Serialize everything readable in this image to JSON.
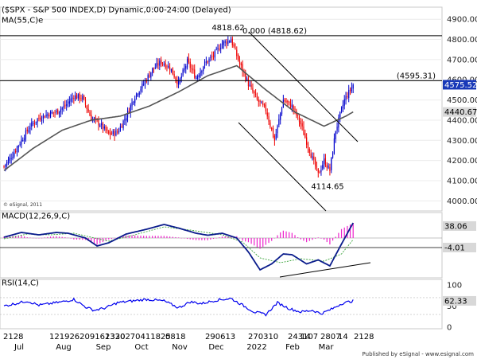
{
  "header": {
    "price_title": "($SPX - S&P 500 INDEX,D) Dynamic,0:00-24:00 (Delayed)",
    "ma_label": "MA(55,C)e",
    "watermark": "© eSignal, 2011",
    "footer": "Published by eSignal - www.esignal.com"
  },
  "colors": {
    "up": "#0000cc",
    "down": "#ee0000",
    "ma": "#555555",
    "macd": "#0a1c8c",
    "signal": "#3aa33a",
    "hist": "#ee22cc",
    "rsi": "#0000ee",
    "level": "#000000",
    "badge_last": "#1838b8",
    "badge_other": "#d8d8d8"
  },
  "chart_data": [
    {
      "type": "candlestick",
      "panel": "price",
      "ylim": [
        3950,
        4960
      ],
      "yticks": [
        4000,
        4100,
        4200,
        4300,
        4400,
        4500,
        4600,
        4700,
        4800,
        4900
      ],
      "ytick_labels": [
        "4000.00",
        "4100.00",
        "4200.00",
        "4300.00",
        "4400.00",
        "4500.00",
        "4600.00",
        "4700.00",
        "4800.00",
        "4900.00"
      ],
      "levels": [
        {
          "value": 4818.62,
          "label": "0.000 (4818.62)"
        },
        {
          "value": 4595.31,
          "label": "(4595.31)"
        }
      ],
      "last_price": 4575.52,
      "last_price_label": "4575.52",
      "ma_last": 4440.67,
      "ma_last_label": "4440.67",
      "annotations": [
        {
          "text": "4818.62",
          "value": 4818.62
        },
        {
          "text": "4114.65",
          "value": 4114.65
        }
      ],
      "anchors": [
        [
          0,
          4170
        ],
        [
          6,
          4230
        ],
        [
          12,
          4300
        ],
        [
          18,
          4370
        ],
        [
          24,
          4410
        ],
        [
          30,
          4430
        ],
        [
          36,
          4440
        ],
        [
          42,
          4470
        ],
        [
          48,
          4520
        ],
        [
          54,
          4510
        ],
        [
          60,
          4410
        ],
        [
          66,
          4380
        ],
        [
          72,
          4330
        ],
        [
          78,
          4340
        ],
        [
          84,
          4420
        ],
        [
          90,
          4520
        ],
        [
          96,
          4580
        ],
        [
          102,
          4650
        ],
        [
          108,
          4690
        ],
        [
          114,
          4660
        ],
        [
          120,
          4580
        ],
        [
          126,
          4690
        ],
        [
          132,
          4610
        ],
        [
          138,
          4680
        ],
        [
          144,
          4720
        ],
        [
          150,
          4780
        ],
        [
          156,
          4800
        ],
        [
          162,
          4680
        ],
        [
          168,
          4580
        ],
        [
          174,
          4500
        ],
        [
          180,
          4450
        ],
        [
          186,
          4300
        ],
        [
          192,
          4500
        ],
        [
          198,
          4470
        ],
        [
          204,
          4380
        ],
        [
          210,
          4250
        ],
        [
          216,
          4130
        ],
        [
          220,
          4200
        ],
        [
          224,
          4150
        ],
        [
          228,
          4350
        ],
        [
          234,
          4500
        ],
        [
          240,
          4575.52
        ]
      ],
      "ma_anchors": [
        [
          0,
          4150
        ],
        [
          20,
          4260
        ],
        [
          40,
          4350
        ],
        [
          60,
          4400
        ],
        [
          80,
          4420
        ],
        [
          100,
          4470
        ],
        [
          120,
          4540
        ],
        [
          140,
          4620
        ],
        [
          160,
          4670
        ],
        [
          180,
          4550
        ],
        [
          200,
          4440
        ],
        [
          220,
          4370
        ],
        [
          235,
          4420
        ],
        [
          240,
          4440.67
        ]
      ]
    },
    {
      "type": "line",
      "panel": "macd",
      "title": "MACD(12,26,9,C)",
      "ylim": [
        -100,
        60
      ],
      "last_macd": 38.06,
      "last_macd_label": "38.06",
      "last_signal": -4.01,
      "last_signal_label": "-4.01",
      "macd_anchors": [
        [
          0,
          2
        ],
        [
          12,
          14
        ],
        [
          24,
          8
        ],
        [
          36,
          14
        ],
        [
          44,
          12
        ],
        [
          56,
          0
        ],
        [
          64,
          -20
        ],
        [
          72,
          -12
        ],
        [
          84,
          10
        ],
        [
          98,
          22
        ],
        [
          110,
          34
        ],
        [
          120,
          25
        ],
        [
          132,
          12
        ],
        [
          140,
          7
        ],
        [
          150,
          12
        ],
        [
          160,
          0
        ],
        [
          168,
          -35
        ],
        [
          176,
          -80
        ],
        [
          184,
          -65
        ],
        [
          192,
          -40
        ],
        [
          198,
          -42
        ],
        [
          208,
          -65
        ],
        [
          216,
          -55
        ],
        [
          224,
          -70
        ],
        [
          232,
          -15
        ],
        [
          240,
          38.06
        ]
      ],
      "signal_anchors": [
        [
          0,
          -2
        ],
        [
          16,
          10
        ],
        [
          32,
          8
        ],
        [
          48,
          12
        ],
        [
          60,
          2
        ],
        [
          72,
          -8
        ],
        [
          90,
          8
        ],
        [
          110,
          28
        ],
        [
          128,
          20
        ],
        [
          150,
          8
        ],
        [
          164,
          -10
        ],
        [
          176,
          -50
        ],
        [
          190,
          -62
        ],
        [
          204,
          -52
        ],
        [
          220,
          -58
        ],
        [
          232,
          -40
        ],
        [
          240,
          -4.01
        ]
      ]
    },
    {
      "type": "line",
      "panel": "rsi",
      "title": "RSI(14,C)",
      "ylim": [
        0,
        100
      ],
      "yticks": [
        100,
        50,
        0
      ],
      "ytick_labels": [
        "100",
        "50",
        "0"
      ],
      "last_rsi": 62.33,
      "last_rsi_label": "62.33",
      "rsi_anchors": [
        [
          0,
          50
        ],
        [
          8,
          56
        ],
        [
          16,
          62
        ],
        [
          24,
          52
        ],
        [
          32,
          56
        ],
        [
          40,
          60
        ],
        [
          48,
          66
        ],
        [
          56,
          48
        ],
        [
          62,
          40
        ],
        [
          70,
          46
        ],
        [
          78,
          58
        ],
        [
          88,
          62
        ],
        [
          98,
          66
        ],
        [
          110,
          62
        ],
        [
          120,
          46
        ],
        [
          128,
          60
        ],
        [
          136,
          56
        ],
        [
          146,
          64
        ],
        [
          156,
          68
        ],
        [
          164,
          52
        ],
        [
          172,
          36
        ],
        [
          180,
          30
        ],
        [
          188,
          58
        ],
        [
          196,
          44
        ],
        [
          204,
          36
        ],
        [
          212,
          40
        ],
        [
          218,
          32
        ],
        [
          226,
          44
        ],
        [
          232,
          56
        ],
        [
          240,
          62.33
        ]
      ]
    },
    {
      "type": "axis",
      "panel": "time",
      "day_labels": [
        {
          "text": "2128",
          "bar": 4
        },
        {
          "text": "121926209162330",
          "bar": 62
        },
        {
          "text": "1320270411825",
          "bar": 132
        },
        {
          "text": "0818",
          "bar": 208
        },
        {
          "text": "290613",
          "bar": 258
        },
        {
          "text": "270310",
          "bar": 312
        },
        {
          "text": "243107",
          "bar": 362
        },
        {
          "text": "14",
          "bar": 378
        },
        {
          "text": "2807",
          "bar": 403
        },
        {
          "text": "14",
          "bar": 425
        },
        {
          "text": "2128",
          "bar": 445
        }
      ],
      "month_labels": [
        {
          "text": "Jul",
          "bar": 24
        },
        {
          "text": "Aug",
          "bar": 80
        },
        {
          "text": "Sep",
          "bar": 130
        },
        {
          "text": "Oct",
          "bar": 178
        },
        {
          "text": "Nov",
          "bar": 226
        },
        {
          "text": "Dec",
          "bar": 272
        },
        {
          "text": "2022",
          "bar": 323
        },
        {
          "text": "Feb",
          "bar": 368
        },
        {
          "text": "Mar",
          "bar": 410
        }
      ]
    }
  ]
}
